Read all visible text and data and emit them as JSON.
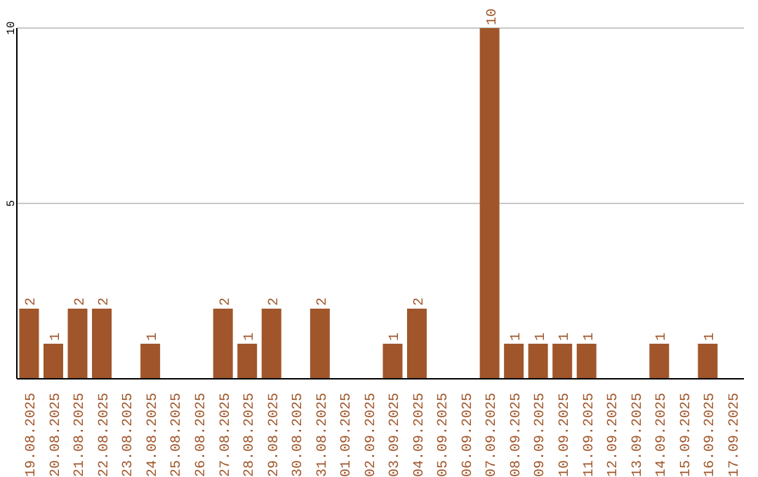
{
  "chart_data": {
    "type": "bar",
    "categories": [
      "19.08.2025",
      "20.08.2025",
      "21.08.2025",
      "22.08.2025",
      "23.08.2025",
      "24.08.2025",
      "25.08.2025",
      "26.08.2025",
      "27.08.2025",
      "28.08.2025",
      "29.08.2025",
      "30.08.2025",
      "31.08.2025",
      "01.09.2025",
      "02.09.2025",
      "03.09.2025",
      "04.09.2025",
      "05.09.2025",
      "06.09.2025",
      "07.09.2025",
      "08.09.2025",
      "09.09.2025",
      "10.09.2025",
      "11.09.2025",
      "12.09.2025",
      "13.09.2025",
      "14.09.2025",
      "15.09.2025",
      "16.09.2025",
      "17.09.2025"
    ],
    "values": [
      2,
      1,
      2,
      2,
      0,
      1,
      0,
      0,
      2,
      1,
      2,
      0,
      2,
      0,
      0,
      1,
      2,
      0,
      0,
      10,
      1,
      1,
      1,
      1,
      0,
      0,
      1,
      0,
      1,
      0
    ],
    "value_labels": [
      "2",
      "1",
      "2",
      "2",
      null,
      "1",
      null,
      null,
      "2",
      "1",
      "2",
      null,
      "2",
      null,
      null,
      "1",
      "2",
      null,
      null,
      "10",
      "1",
      "1",
      "1",
      "1",
      null,
      null,
      "1",
      null,
      "1",
      null
    ],
    "color": "#a0562a",
    "ylim": [
      0,
      10
    ],
    "yticks": [
      5,
      10
    ],
    "grid": "y"
  }
}
